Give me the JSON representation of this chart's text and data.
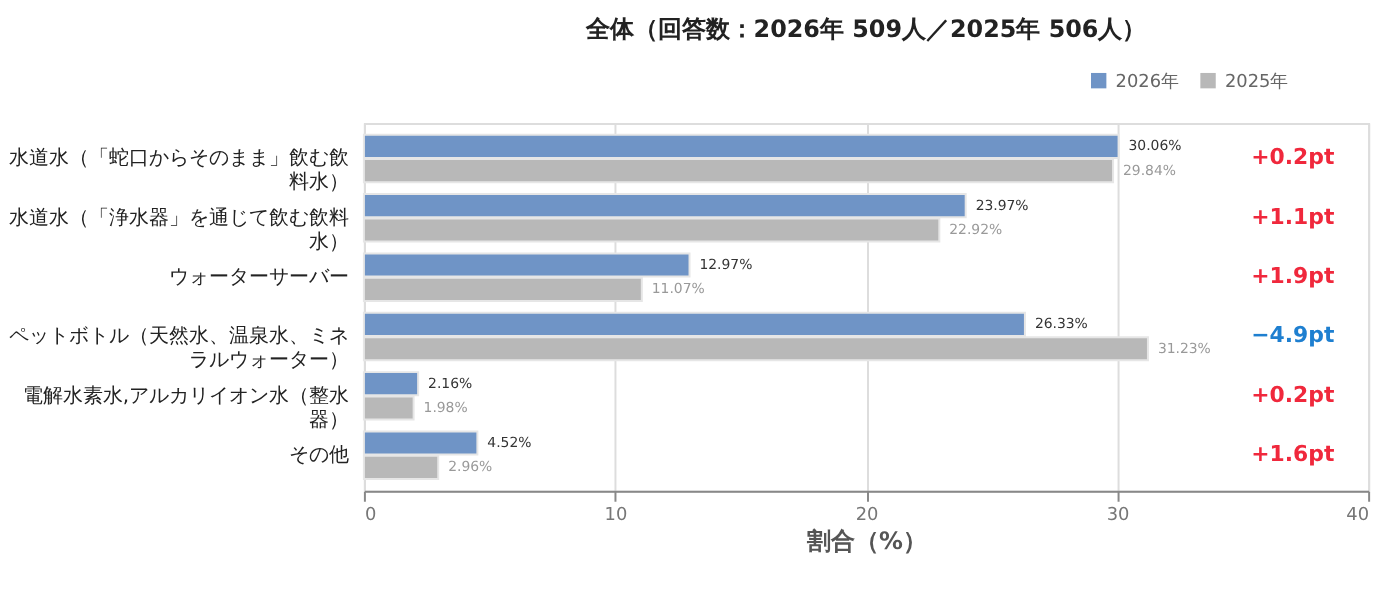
{
  "chart_data": {
    "type": "bar",
    "orientation": "horizontal",
    "title": "全体（回答数：2026年 509人／2025年 506人）",
    "xlabel": "割合（%）",
    "categories": [
      "水道水（「蛇口からそのまま」飲む飲料水）",
      "水道水（「浄水器」を通じて飲む飲料水）",
      "ウォーターサーバー",
      "ペットボトル（天然水、温泉水、ミネラルウォーター）",
      "電解水素水,アルカリイオン水（整水器）",
      "その他"
    ],
    "series": [
      {
        "name": "2026年",
        "color": "#6f94c6",
        "values": [
          30.06,
          23.97,
          12.97,
          26.33,
          2.16,
          4.52
        ],
        "value_labels": [
          "30.06%",
          "23.97%",
          "12.97%",
          "26.33%",
          "2.16%",
          "4.52%"
        ]
      },
      {
        "name": "2025年",
        "color": "#b8b8b8",
        "values": [
          29.84,
          22.92,
          11.07,
          31.23,
          1.98,
          2.96
        ],
        "value_labels": [
          "29.84%",
          "22.92%",
          "11.07%",
          "31.23%",
          "1.98%",
          "2.96%"
        ]
      }
    ],
    "annotations": [
      "+0.2pt",
      "+1.1pt",
      "+1.9pt",
      "−4.9pt",
      "+0.2pt",
      "+1.6pt"
    ],
    "xlim": [
      0,
      40
    ],
    "xticks": [
      0,
      10,
      20,
      30,
      40
    ],
    "grid": "x",
    "legend": "top right"
  }
}
